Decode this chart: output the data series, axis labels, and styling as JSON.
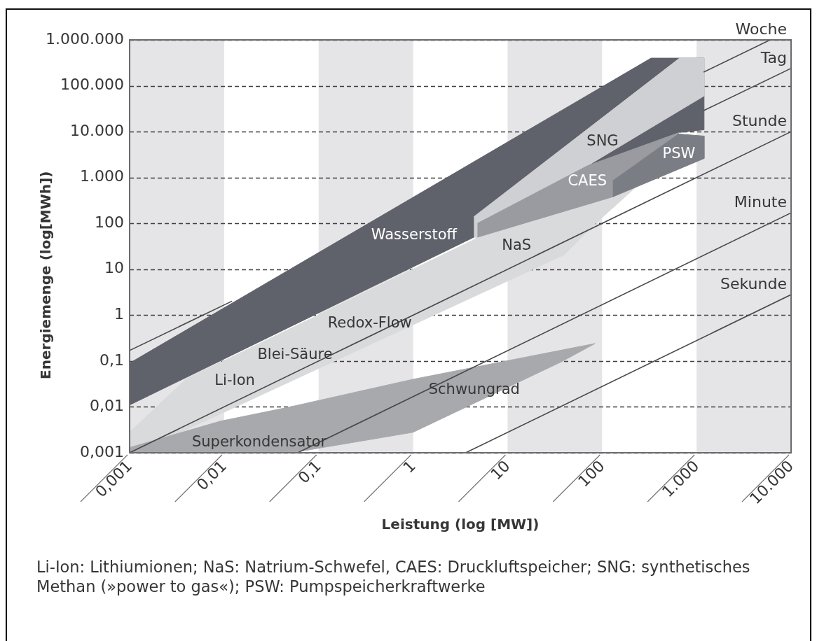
{
  "chart_data": {
    "type": "area",
    "xlabel": "Leistung (log [MW])",
    "ylabel": "Energiemenge (log[MWh])",
    "log": "xy",
    "xlim": [
      0.001,
      10000
    ],
    "ylim": [
      0.001,
      1000000
    ],
    "xticks": [
      {
        "value": 0.001,
        "label": "0,001"
      },
      {
        "value": 0.01,
        "label": "0,01"
      },
      {
        "value": 0.1,
        "label": "0,1"
      },
      1,
      10,
      100,
      {
        "value": 1000,
        "label": "1.000"
      },
      {
        "value": 10000,
        "label": "10.000"
      }
    ],
    "yticks": [
      {
        "value": 0.001,
        "label": "0,001"
      },
      {
        "value": 0.01,
        "label": "0,01"
      },
      {
        "value": 0.1,
        "label": "0,1"
      },
      1,
      10,
      100,
      {
        "value": 1000,
        "label": "1.000"
      },
      {
        "value": 10000,
        "label": "10.000"
      },
      {
        "value": 100000,
        "label": "100.000"
      },
      {
        "value": 1000000,
        "label": "1.000.000"
      }
    ],
    "grid": "y",
    "bands": [
      {
        "axis": "x",
        "from": 0.001,
        "to": 0.01,
        "color": "#e5e5e7"
      },
      {
        "axis": "x",
        "from": 0.1,
        "to": 1,
        "color": "#e5e5e7"
      },
      {
        "axis": "x",
        "from": 10,
        "to": 100,
        "color": "#e5e5e7"
      },
      {
        "axis": "x",
        "from": 1000,
        "to": 10000,
        "color": "#e5e5e7"
      }
    ],
    "series": [
      {
        "color": "#d9dadc",
        "x": [
          0.0012,
          0.001,
          0.001,
          0.004,
          4.3,
          4.8,
          130,
          230,
          84,
          39
        ],
        "values": [
          0.001,
          0.001,
          0.0028,
          0.041,
          43,
          50,
          380,
          630,
          97,
          20
        ]
      },
      {
        "color": "#a8a9ad",
        "x": [
          0.001,
          0.001,
          0.0092,
          0.05,
          1.0,
          84,
          37,
          1.0,
          0.052
        ],
        "values": [
          0.001,
          0.0013,
          0.0049,
          0.01,
          0.04,
          0.24,
          0.096,
          0.0028,
          0.001
        ]
      },
      {
        "name": "Wasserstoff",
        "color": "#5f616b",
        "x": [
          0.001,
          4.4,
          70,
          660,
          1200,
          1200,
          330,
          0.001
        ],
        "values": [
          0.011,
          50,
          1800,
          9600,
          11000,
          400000,
          400000,
          0.09
        ]
      },
      {
        "name": "SNG",
        "color": "#cfd0d3",
        "x": [
          4.4,
          660,
          1200,
          1200,
          70,
          4.8,
          4.8,
          4.4
        ],
        "values": [
          140,
          400000,
          400000,
          60000,
          1800,
          100,
          50,
          50
        ]
      },
      {
        "name": "CAES",
        "color": "#9a9ba1",
        "x": [
          4.8,
          70,
          660,
          130,
          130,
          4.8
        ],
        "values": [
          100,
          1800,
          9600,
          850,
          380,
          50
        ]
      },
      {
        "name": "PSW",
        "color": "#7b7d85",
        "x": [
          130,
          640,
          1200,
          1200,
          130
        ],
        "values": [
          850,
          8900,
          8000,
          2600,
          380
        ]
      },
      {
        "type": "line",
        "name": "Woche",
        "color": "#4a4a4a",
        "x": [
          0.001,
          0.012,
          10,
          1200,
          6000
        ],
        "values": [
          0.17,
          2.0,
          null,
          200000,
          1000000
        ]
      },
      {
        "type": "line",
        "name": "Tag",
        "color": "#4a4a4a",
        "x": [
          1200,
          10000
        ],
        "values": [
          29000,
          240000
        ]
      },
      {
        "type": "line",
        "name": "Stunde",
        "color": "#4a4a4a",
        "x": [
          0.001,
          10000
        ],
        "values": [
          0.001,
          10000
        ]
      },
      {
        "type": "line",
        "name": "Minute",
        "color": "#4a4a4a",
        "x": [
          0.06,
          10000
        ],
        "values": [
          0.001,
          170
        ]
      },
      {
        "type": "line",
        "name": "Sekunde",
        "color": "#4a4a4a",
        "x": [
          3.6,
          10000
        ],
        "values": [
          0.001,
          2.8
        ]
      }
    ],
    "annotations": [
      "NaS",
      "Redox-Flow",
      "Blei-Säure",
      "Li-Ion",
      "Schwungrad",
      "Superkondensator",
      "Li-Ion: Lithiumionen; NaS: Natrium-Schwefel, CAES: Druckluftspeicher; SNG: synthetisches Methan (»power to gas«); PSW: Pumpspeicherkraftwerke"
    ]
  }
}
